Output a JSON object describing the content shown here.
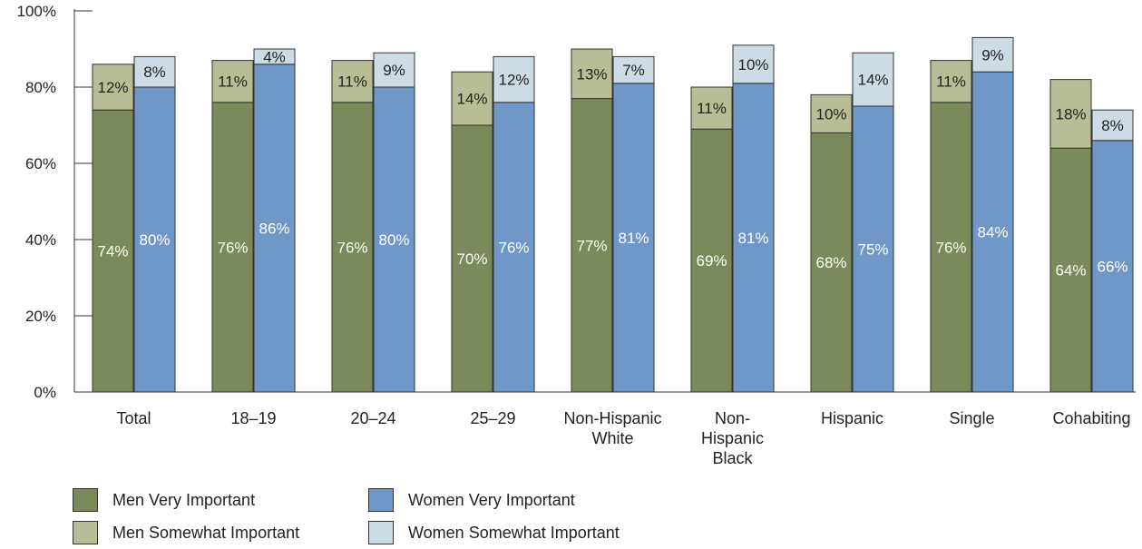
{
  "chart_data": {
    "type": "bar",
    "stacked": true,
    "categories": [
      [
        "Total"
      ],
      [
        "18–19"
      ],
      [
        "20–24"
      ],
      [
        "25–29"
      ],
      [
        "Non-Hispanic",
        "White"
      ],
      [
        "Non-",
        "Hispanic",
        "Black"
      ],
      [
        "Hispanic"
      ],
      [
        "Single"
      ],
      [
        "Cohabiting"
      ]
    ],
    "men": {
      "very": [
        74,
        76,
        76,
        70,
        77,
        69,
        68,
        76,
        64
      ],
      "somewhat": [
        12,
        11,
        11,
        14,
        13,
        11,
        10,
        11,
        18
      ]
    },
    "women": {
      "very": [
        80,
        86,
        80,
        76,
        81,
        81,
        75,
        84,
        66
      ],
      "somewhat": [
        8,
        4,
        9,
        12,
        7,
        10,
        14,
        9,
        8
      ]
    },
    "yticks": [
      "0%",
      "20%",
      "40%",
      "60%",
      "80%",
      "100%"
    ],
    "ylim": [
      0,
      100
    ],
    "colors": {
      "men_very": "#7a8a5a",
      "men_somewhat": "#b9bd96",
      "women_very": "#6f98c8",
      "women_somewhat": "#cddbe4"
    },
    "legend": {
      "men_very": "Men Very Important",
      "women_very": "Women Very Important",
      "men_somewhat": "Men Somewhat Important",
      "women_somewhat": "Women Somewhat Important"
    },
    "legend_position": "bottom-left"
  }
}
